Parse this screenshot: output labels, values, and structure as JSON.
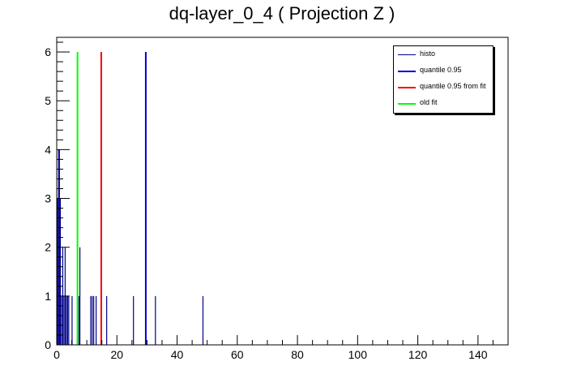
{
  "chart_data": {
    "type": "bar",
    "title": "dq-layer_0_4 ( Projection Z )",
    "xlabel": "",
    "ylabel": "",
    "xlim": [
      0,
      150
    ],
    "ylim": [
      0,
      6.3
    ],
    "x_ticks": [
      "0",
      "20",
      "40",
      "60",
      "80",
      "100",
      "120",
      "140"
    ],
    "y_ticks": [
      "0",
      "1",
      "2",
      "3",
      "4",
      "5",
      "6"
    ],
    "grid": false,
    "legend_position": "top-right",
    "series": [
      {
        "name": "histo",
        "color": "#00008b",
        "bins": [
          {
            "x": 0.3,
            "y": 3
          },
          {
            "x": 0.6,
            "y": 4
          },
          {
            "x": 0.9,
            "y": 4
          },
          {
            "x": 1.2,
            "y": 3
          },
          {
            "x": 1.6,
            "y": 1
          },
          {
            "x": 2.0,
            "y": 2
          },
          {
            "x": 2.4,
            "y": 1
          },
          {
            "x": 2.8,
            "y": 2
          },
          {
            "x": 3.2,
            "y": 1
          },
          {
            "x": 3.6,
            "y": 1
          },
          {
            "x": 4.0,
            "y": 1
          },
          {
            "x": 5.1,
            "y": 1
          },
          {
            "x": 7.4,
            "y": 1
          },
          {
            "x": 7.7,
            "y": 2
          },
          {
            "x": 11.3,
            "y": 1
          },
          {
            "x": 11.8,
            "y": 1
          },
          {
            "x": 12.3,
            "y": 1
          },
          {
            "x": 13.1,
            "y": 1
          },
          {
            "x": 16.6,
            "y": 1
          },
          {
            "x": 25.5,
            "y": 1
          },
          {
            "x": 32.8,
            "y": 1
          },
          {
            "x": 48.6,
            "y": 1
          }
        ]
      },
      {
        "name": "quantile 0.95",
        "color": "#0000cd",
        "x": 29.6,
        "y": 6
      },
      {
        "name": "quantile 0.95 from fit",
        "color": "#ff0000",
        "x": 14.8,
        "y": 6
      },
      {
        "name": "old fit",
        "color": "#00ff00",
        "x": 6.9,
        "y": 6
      }
    ]
  }
}
